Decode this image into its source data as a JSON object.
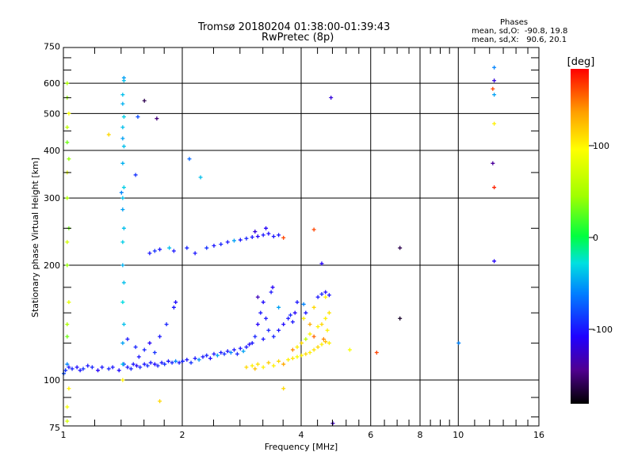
{
  "chart_data": {
    "type": "scatter",
    "title": "Tromsø 20180204 01:38:00-01:39:43",
    "subtitle": "RwPretec (8p)",
    "xlabel": "Frequency [MHz]",
    "ylabel": "Stationary phase Virtual Height [km]",
    "xscale": "log",
    "yscale": "log",
    "xlim": [
      1,
      16
    ],
    "ylim": [
      75,
      750
    ],
    "xticks": [
      "1",
      "2",
      "4",
      "6",
      "8",
      "10",
      "16"
    ],
    "xtick_values": [
      1,
      2,
      4,
      6,
      8,
      10,
      16
    ],
    "yticks": [
      "75",
      "100",
      "200",
      "300",
      "400",
      "500",
      "600",
      "750"
    ],
    "ytick_values": [
      75,
      100,
      200,
      300,
      400,
      500,
      600,
      750
    ],
    "grid": true,
    "colorbar": {
      "label": "[deg]",
      "range": [
        -180,
        180
      ],
      "ticks": [
        "100",
        "0",
        "-100"
      ],
      "tick_values": [
        100,
        0,
        -100
      ]
    },
    "stats": {
      "title": "Phases",
      "line_o": "mean, sd,O:  -90.8, 19.8",
      "line_x": "mean, sd,X:   90.6, 20.1"
    },
    "point_format": [
      "frequency_MHz",
      "height_km",
      "phase_deg"
    ],
    "points": [
      [
        1.0,
        104,
        -80
      ],
      [
        1.01,
        106,
        -90
      ],
      [
        1.02,
        110,
        -60
      ],
      [
        1.03,
        108,
        -100
      ],
      [
        1.05,
        107,
        -95
      ],
      [
        1.08,
        108,
        -105
      ],
      [
        1.1,
        106,
        -100
      ],
      [
        1.12,
        107,
        -90
      ],
      [
        1.15,
        109,
        -100
      ],
      [
        1.18,
        108,
        -95
      ],
      [
        1.22,
        106,
        -110
      ],
      [
        1.25,
        108,
        -100
      ],
      [
        1.3,
        107,
        -95
      ],
      [
        1.33,
        108,
        -100
      ],
      [
        1.38,
        106,
        -105
      ],
      [
        1.42,
        110,
        -90
      ],
      [
        1.45,
        108,
        -100
      ],
      [
        1.48,
        107,
        -95
      ],
      [
        1.5,
        110,
        -100
      ],
      [
        1.53,
        109,
        -110
      ],
      [
        1.56,
        108,
        -95
      ],
      [
        1.6,
        110,
        -100
      ],
      [
        1.63,
        109,
        -90
      ],
      [
        1.66,
        111,
        -100
      ],
      [
        1.7,
        110,
        -105
      ],
      [
        1.73,
        109,
        -95
      ],
      [
        1.77,
        111,
        -100
      ],
      [
        1.8,
        110,
        -90
      ],
      [
        1.84,
        112,
        -100
      ],
      [
        1.88,
        111,
        -95
      ],
      [
        1.92,
        112,
        -60
      ],
      [
        1.96,
        111,
        -100
      ],
      [
        2.0,
        112,
        -95
      ],
      [
        2.05,
        113,
        -100
      ],
      [
        2.1,
        111,
        -90
      ],
      [
        2.15,
        114,
        -100
      ],
      [
        2.2,
        113,
        -55
      ],
      [
        2.25,
        115,
        -100
      ],
      [
        2.3,
        116,
        -95
      ],
      [
        2.35,
        114,
        -105
      ],
      [
        2.4,
        117,
        -100
      ],
      [
        2.45,
        116,
        -50
      ],
      [
        2.5,
        118,
        -100
      ],
      [
        2.55,
        117,
        -90
      ],
      [
        2.6,
        119,
        -100
      ],
      [
        2.65,
        118,
        -60
      ],
      [
        2.7,
        120,
        -100
      ],
      [
        2.75,
        117,
        -95
      ],
      [
        2.8,
        121,
        -100
      ],
      [
        2.85,
        119,
        -50
      ],
      [
        2.9,
        122,
        -100
      ],
      [
        2.95,
        124,
        -105
      ],
      [
        1.55,
        115,
        -100
      ],
      [
        1.6,
        120,
        -95
      ],
      [
        1.65,
        125,
        -110
      ],
      [
        1.7,
        118,
        -90
      ],
      [
        1.75,
        130,
        -100
      ],
      [
        1.82,
        140,
        -95
      ],
      [
        1.9,
        155,
        -100
      ],
      [
        1.92,
        160,
        -105
      ],
      [
        1.45,
        128,
        -100
      ],
      [
        1.52,
        122,
        -95
      ],
      [
        3.0,
        125,
        -100
      ],
      [
        3.05,
        130,
        -95
      ],
      [
        3.1,
        140,
        -110
      ],
      [
        3.15,
        150,
        -100
      ],
      [
        3.2,
        160,
        -105
      ],
      [
        3.25,
        145,
        -100
      ],
      [
        3.3,
        135,
        -95
      ],
      [
        3.35,
        170,
        -100
      ],
      [
        3.38,
        175,
        -110
      ],
      [
        3.1,
        165,
        -130
      ],
      [
        3.2,
        128,
        -100
      ],
      [
        3.4,
        130,
        -95
      ],
      [
        3.5,
        135,
        -100
      ],
      [
        3.6,
        140,
        -105
      ],
      [
        3.7,
        145,
        -100
      ],
      [
        3.75,
        148,
        -95
      ],
      [
        3.8,
        142,
        -100
      ],
      [
        3.5,
        155,
        -50
      ],
      [
        3.85,
        150,
        -110
      ],
      [
        3.9,
        160,
        -100
      ],
      [
        4.4,
        165,
        -100
      ],
      [
        4.5,
        168,
        -95
      ],
      [
        4.6,
        170,
        -105
      ],
      [
        4.7,
        167,
        -100
      ],
      [
        4.05,
        158,
        -60
      ],
      [
        4.1,
        150,
        -100
      ],
      [
        2.9,
        108,
        110
      ],
      [
        3.0,
        109,
        100
      ],
      [
        3.05,
        107,
        120
      ],
      [
        3.1,
        110,
        105
      ],
      [
        3.2,
        108,
        100
      ],
      [
        3.3,
        111,
        115
      ],
      [
        3.4,
        109,
        100
      ],
      [
        3.5,
        112,
        110
      ],
      [
        3.6,
        110,
        130
      ],
      [
        3.7,
        113,
        100
      ],
      [
        3.8,
        114,
        105
      ],
      [
        3.9,
        115,
        90
      ],
      [
        4.0,
        116,
        100
      ],
      [
        4.1,
        117,
        110
      ],
      [
        4.2,
        118,
        100
      ],
      [
        4.3,
        120,
        105
      ],
      [
        4.4,
        122,
        110
      ],
      [
        4.5,
        124,
        100
      ],
      [
        4.6,
        126,
        120
      ],
      [
        4.7,
        125,
        100
      ],
      [
        3.8,
        120,
        140
      ],
      [
        3.9,
        122,
        100
      ],
      [
        4.0,
        125,
        110
      ],
      [
        4.1,
        128,
        60
      ],
      [
        4.2,
        132,
        100
      ],
      [
        4.3,
        130,
        150
      ],
      [
        4.4,
        138,
        100
      ],
      [
        4.5,
        140,
        110
      ],
      [
        4.6,
        145,
        100
      ],
      [
        4.7,
        150,
        105
      ],
      [
        4.65,
        135,
        100
      ],
      [
        4.55,
        128,
        140
      ],
      [
        4.2,
        140,
        130
      ],
      [
        4.05,
        145,
        100
      ],
      [
        4.3,
        155,
        110
      ],
      [
        4.6,
        165,
        100
      ],
      [
        1.41,
        100,
        100
      ],
      [
        1.41,
        110,
        -40
      ],
      [
        1.41,
        125,
        -50
      ],
      [
        1.42,
        140,
        -40
      ],
      [
        1.41,
        160,
        -30
      ],
      [
        1.42,
        180,
        -40
      ],
      [
        1.41,
        200,
        -45
      ],
      [
        1.41,
        230,
        -35
      ],
      [
        1.42,
        250,
        -40
      ],
      [
        1.41,
        280,
        -50
      ],
      [
        1.41,
        300,
        -40
      ],
      [
        1.42,
        320,
        -35
      ],
      [
        1.41,
        370,
        -45
      ],
      [
        1.42,
        410,
        -40
      ],
      [
        1.41,
        430,
        -50
      ],
      [
        1.41,
        460,
        -40
      ],
      [
        1.42,
        490,
        -35
      ],
      [
        1.41,
        530,
        -45
      ],
      [
        1.41,
        560,
        -40
      ],
      [
        1.42,
        610,
        -40
      ],
      [
        1.42,
        620,
        -50
      ],
      [
        1.02,
        78,
        70
      ],
      [
        1.02,
        85,
        90
      ],
      [
        1.03,
        95,
        100
      ],
      [
        1.02,
        130,
        30
      ],
      [
        1.02,
        140,
        50
      ],
      [
        1.03,
        160,
        80
      ],
      [
        1.02,
        200,
        40
      ],
      [
        1.02,
        230,
        70
      ],
      [
        1.03,
        250,
        30
      ],
      [
        1.02,
        300,
        50
      ],
      [
        1.02,
        350,
        80
      ],
      [
        1.03,
        380,
        40
      ],
      [
        1.02,
        420,
        30
      ],
      [
        1.02,
        460,
        60
      ],
      [
        1.03,
        500,
        90
      ],
      [
        1.02,
        550,
        40
      ],
      [
        1.02,
        600,
        50
      ],
      [
        1.3,
        440,
        110
      ],
      [
        1.4,
        310,
        -60
      ],
      [
        1.52,
        345,
        -90
      ],
      [
        1.54,
        490,
        -80
      ],
      [
        1.6,
        540,
        -160
      ],
      [
        1.72,
        485,
        -150
      ],
      [
        2.08,
        380,
        -70
      ],
      [
        2.22,
        340,
        -40
      ],
      [
        4.75,
        550,
        -120
      ],
      [
        4.8,
        77,
        -130
      ],
      [
        7.1,
        222,
        -160
      ],
      [
        7.1,
        145,
        -170
      ],
      [
        6.2,
        118,
        160
      ],
      [
        10.0,
        125,
        -60
      ],
      [
        5.3,
        120,
        90
      ],
      [
        3.6,
        95,
        110
      ],
      [
        1.75,
        88,
        110
      ],
      [
        1.65,
        215,
        -100
      ],
      [
        1.7,
        218,
        -90
      ],
      [
        1.75,
        220,
        -100
      ],
      [
        1.85,
        222,
        -40
      ],
      [
        1.9,
        218,
        -100
      ],
      [
        2.05,
        222,
        -95
      ],
      [
        2.15,
        215,
        -100
      ],
      [
        2.3,
        222,
        -90
      ],
      [
        2.4,
        225,
        -100
      ],
      [
        2.5,
        227,
        -95
      ],
      [
        2.6,
        230,
        -100
      ],
      [
        2.7,
        232,
        -50
      ],
      [
        2.8,
        233,
        -100
      ],
      [
        2.9,
        235,
        -95
      ],
      [
        3.0,
        237,
        -100
      ],
      [
        3.1,
        238,
        -110
      ],
      [
        3.2,
        240,
        -100
      ],
      [
        3.3,
        242,
        -105
      ],
      [
        3.4,
        238,
        -100
      ],
      [
        3.5,
        240,
        -100
      ],
      [
        3.6,
        236,
        160
      ],
      [
        3.05,
        245,
        -120
      ],
      [
        3.25,
        250,
        -110
      ],
      [
        4.3,
        248,
        160
      ],
      [
        4.5,
        202,
        -110
      ],
      [
        12.3,
        660,
        -60
      ],
      [
        12.3,
        610,
        -120
      ],
      [
        12.2,
        580,
        160
      ],
      [
        12.3,
        560,
        -50
      ],
      [
        12.3,
        470,
        100
      ],
      [
        12.2,
        370,
        -140
      ],
      [
        12.3,
        320,
        170
      ],
      [
        12.3,
        205,
        -110
      ]
    ]
  }
}
